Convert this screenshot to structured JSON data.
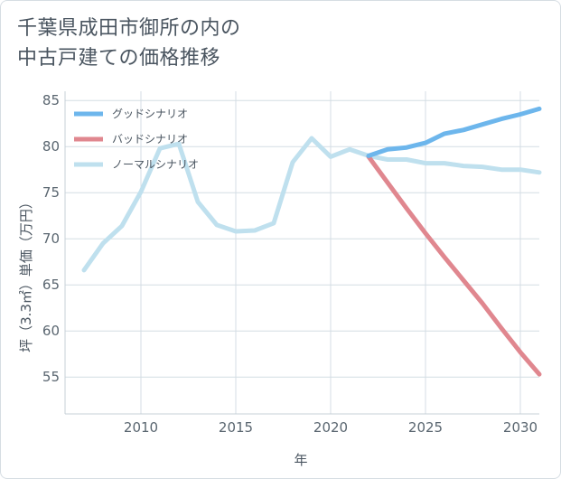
{
  "title_lines": [
    "千葉県成田市御所の内の",
    "中古戸建ての価格推移"
  ],
  "chart_data": {
    "type": "line",
    "title": "千葉県成田市御所の内の中古戸建ての価格推移",
    "xlabel": "年",
    "ylabel": "坪（3.3㎡）単価（万円）",
    "xlim": [
      2006,
      2031
    ],
    "ylim": [
      51,
      86
    ],
    "xticks": [
      2010,
      2015,
      2020,
      2025,
      2030
    ],
    "yticks": [
      55,
      60,
      65,
      70,
      75,
      80,
      85
    ],
    "grid": true,
    "legend_position": "top-left",
    "series": [
      {
        "name": "グッドシナリオ",
        "color": "#6db6ec",
        "x": [
          2022,
          2023,
          2024,
          2025,
          2026,
          2027,
          2028,
          2029,
          2030,
          2031
        ],
        "y": [
          79.0,
          79.7,
          79.9,
          80.4,
          81.4,
          81.8,
          82.4,
          83.0,
          83.5,
          84.1
        ]
      },
      {
        "name": "バッドシナリオ",
        "color": "#e0878f",
        "x": [
          2022,
          2023,
          2024,
          2025,
          2026,
          2027,
          2028,
          2029,
          2030,
          2031
        ],
        "y": [
          78.9,
          76.1,
          73.3,
          70.6,
          68.0,
          65.5,
          63.0,
          60.3,
          57.7,
          55.3
        ]
      },
      {
        "name": "ノーマルシナリオ",
        "color": "#bfe0ee",
        "x": [
          2007,
          2008,
          2009,
          2010,
          2011,
          2012,
          2013,
          2014,
          2015,
          2016,
          2017,
          2018,
          2019,
          2020,
          2021,
          2022,
          2023,
          2024,
          2025,
          2026,
          2027,
          2028,
          2029,
          2030,
          2031
        ],
        "y": [
          66.6,
          69.5,
          71.4,
          75.1,
          79.8,
          80.3,
          74.0,
          71.5,
          70.8,
          70.9,
          71.7,
          78.3,
          80.9,
          78.9,
          79.7,
          79.0,
          78.6,
          78.6,
          78.2,
          78.2,
          77.9,
          77.8,
          77.5,
          77.5,
          77.2
        ]
      }
    ]
  }
}
